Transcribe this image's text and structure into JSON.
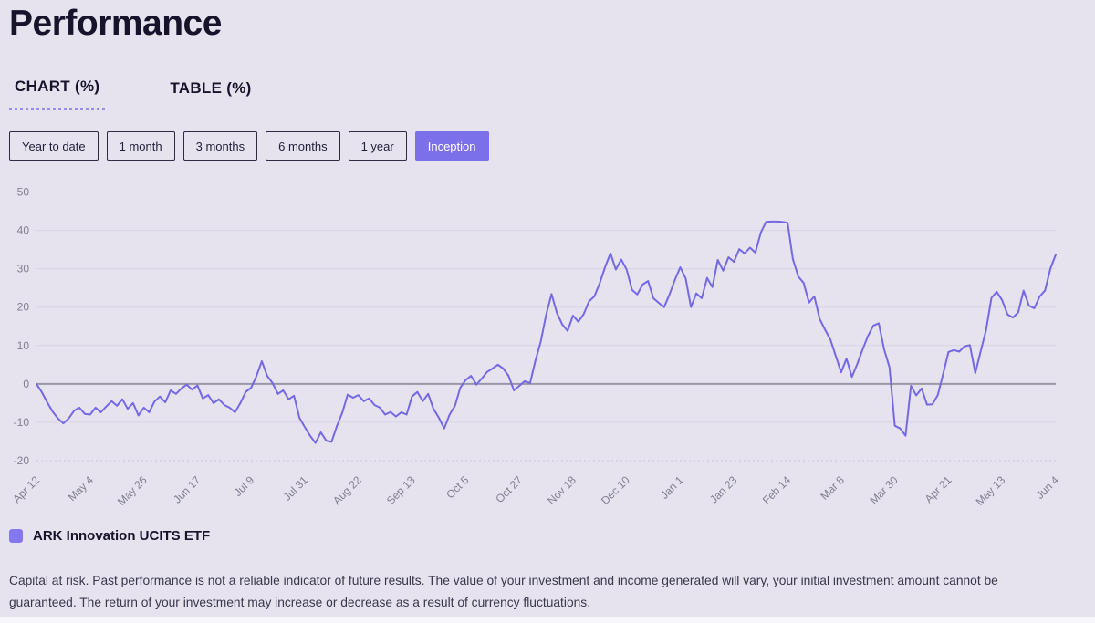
{
  "page": {
    "title": "Performance"
  },
  "tabs": [
    {
      "label": "CHART (%)",
      "active": true
    },
    {
      "label": "TABLE (%)",
      "active": false
    }
  ],
  "range_buttons": [
    {
      "label": "Year to date",
      "active": false
    },
    {
      "label": "1 month",
      "active": false
    },
    {
      "label": "3 months",
      "active": false
    },
    {
      "label": "6 months",
      "active": false
    },
    {
      "label": "1 year",
      "active": false
    },
    {
      "label": "Inception",
      "active": true
    }
  ],
  "legend": {
    "label": "ARK Innovation UCITS ETF",
    "swatch_color": "#8678f0"
  },
  "disclaimer": "Capital at risk. Past performance is not a reliable indicator of future results. The value of your investment and income generated will vary, your initial investment amount cannot be guaranteed. The return of your investment may increase or decrease as a result of currency fluctuations.",
  "colors": {
    "background": "#e6e3ef",
    "accent_purple": "#7b70ea",
    "line_purple": "#7568e4",
    "grid_line": "#d7d4e2",
    "zero_line": "#9996a6",
    "axis_text": "#817e90",
    "dark_text": "#16132b"
  },
  "chart_data": {
    "type": "line",
    "title": "",
    "xlabel": "",
    "ylabel": "",
    "ylim": [
      -20,
      50
    ],
    "y_ticks": [
      50,
      40,
      30,
      20,
      10,
      0,
      -10,
      -20
    ],
    "grid": true,
    "legend_position": "bottom",
    "x_tick_labels": [
      "Apr 12",
      "May 4",
      "May 26",
      "Jun 17",
      "Jul 9",
      "Jul 31",
      "Aug 22",
      "Sep 13",
      "Oct 5",
      "Oct 27",
      "Nov 18",
      "Dec 10",
      "Jan 1",
      "Jan 23",
      "Feb 14",
      "Mar 8",
      "Mar 30",
      "Apr 21",
      "May 13",
      "Jun 4"
    ],
    "series": [
      {
        "name": "ARK Innovation UCITS ETF",
        "color": "#7568e4",
        "unit": "%",
        "values": [
          0,
          -2.2,
          -4.8,
          -7.2,
          -9,
          -10.3,
          -9,
          -7,
          -6.2,
          -7.8,
          -8,
          -6.2,
          -7.4,
          -5.9,
          -4.5,
          -5.7,
          -4,
          -6.5,
          -5,
          -8.2,
          -6.2,
          -7.4,
          -4.6,
          -3.3,
          -4.8,
          -1.7,
          -2.6,
          -1.2,
          -0.2,
          -1.5,
          -0.4,
          -3.8,
          -2.9,
          -5,
          -4,
          -5.5,
          -6.2,
          -7.4,
          -5,
          -2.1,
          -1,
          2,
          5.9,
          2.1,
          0.2,
          -2.6,
          -1.7,
          -4,
          -3.1,
          -8.8,
          -11.2,
          -13.5,
          -15.4,
          -12.6,
          -14.8,
          -15.1,
          -11,
          -7.5,
          -2.8,
          -3.6,
          -2.9,
          -4.5,
          -3.8,
          -5.5,
          -6.2,
          -8,
          -7.3,
          -8.5,
          -7.4,
          -8,
          -3.3,
          -2.1,
          -4.5,
          -2.6,
          -6.5,
          -8.8,
          -11.6,
          -8,
          -5.7,
          -1,
          1,
          2.1,
          -0.2,
          1.4,
          3.1,
          4,
          5,
          4,
          2.1,
          -1.7,
          -0.5,
          0.7,
          0.2,
          6,
          11,
          18,
          23.4,
          18.5,
          15.5,
          13.8,
          17.8,
          16.2,
          18.2,
          21.5,
          22.8,
          26.3,
          30.5,
          34,
          29.8,
          32.4,
          29.8,
          24.5,
          23.3,
          25.9,
          26.8,
          22.3,
          21.1,
          20,
          23.3,
          27.1,
          30.4,
          27.5,
          20,
          23.6,
          22.3,
          27.6,
          25.2,
          32.3,
          29.5,
          33,
          31.8,
          35.1,
          34,
          35.5,
          34.2,
          39.4,
          42.2,
          42.3,
          42.3,
          42.2,
          42,
          32.5,
          28,
          26.3,
          21.2,
          22.8,
          16.9,
          14.1,
          11.5,
          7.2,
          3,
          6.6,
          1.8,
          5.2,
          9,
          12.5,
          15.2,
          15.8,
          9,
          4.3,
          -10.9,
          -11.6,
          -13.5,
          -0.5,
          -3,
          -1.2,
          -5.4,
          -5.3,
          -2.9,
          2.5,
          8.3,
          8.8,
          8.4,
          9.8,
          10.1,
          2.8,
          8.5,
          14,
          22.4,
          24,
          21.8,
          18.1,
          17.3,
          18.6,
          24.3,
          20.4,
          19.7,
          22.8,
          24.3,
          30,
          33.7
        ]
      }
    ]
  }
}
